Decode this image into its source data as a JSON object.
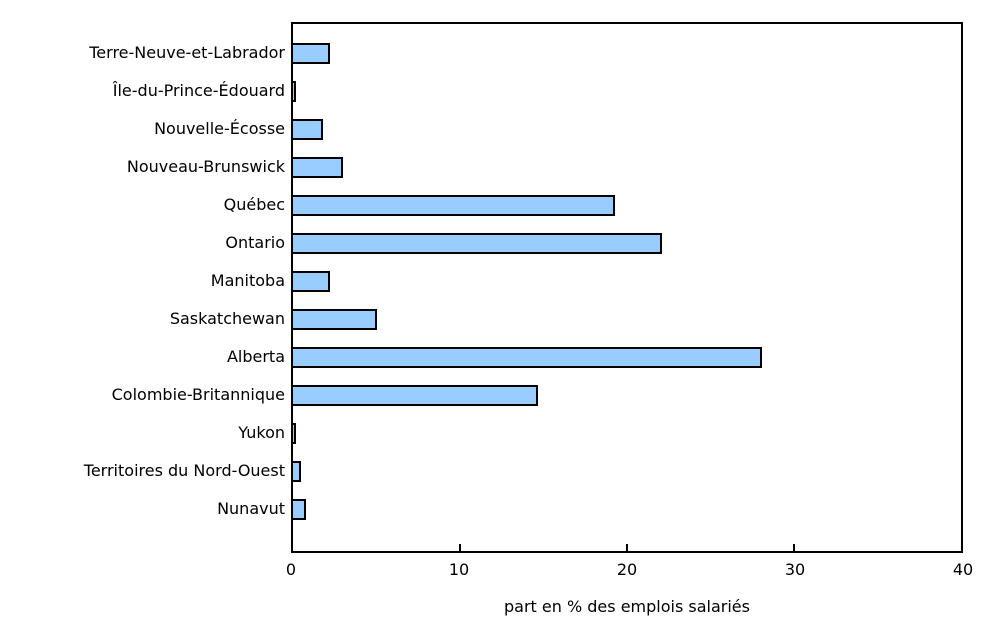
{
  "chart_data": {
    "type": "bar",
    "orientation": "horizontal",
    "categories": [
      "Terre-Neuve-et-Labrador",
      "Île-du-Prince-Édouard",
      "Nouvelle-Écosse",
      "Nouveau-Brunswick",
      "Québec",
      "Ontario",
      "Manitoba",
      "Saskatchewan",
      "Alberta",
      "Colombie-Britannique",
      "Yukon",
      "Territoires du Nord-Ouest",
      "Nunavut"
    ],
    "values": [
      2.2,
      0.2,
      1.8,
      3.0,
      19.3,
      22.1,
      2.2,
      5.0,
      28.1,
      14.7,
      0.2,
      0.5,
      0.8
    ],
    "title": "",
    "xlabel": "part en % des emplois salariés",
    "ylabel": "",
    "xlim": [
      0,
      40
    ],
    "xticks": [
      0,
      10,
      20,
      30,
      40
    ],
    "grid": false,
    "legend": false,
    "bar_color": "#99CCFF",
    "bar_border_color": "#000000",
    "axis_color": "#000000",
    "background_color": "#FFFFFF"
  }
}
